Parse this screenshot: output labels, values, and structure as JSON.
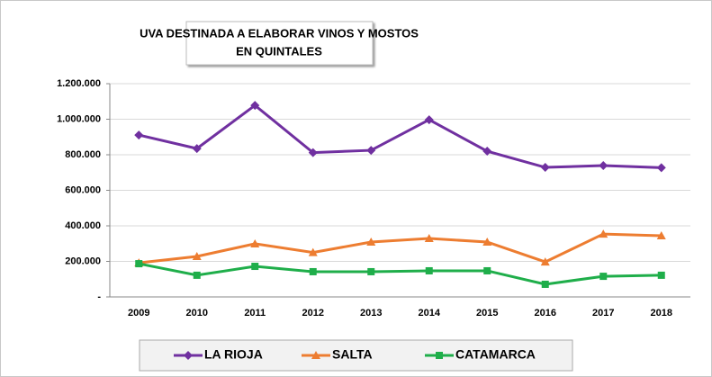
{
  "chart_data": {
    "type": "line",
    "title": [
      "UVA DESTINADA A ELABORAR VINOS Y MOSTOS",
      "EN QUINTALES"
    ],
    "categories": [
      "2009",
      "2010",
      "2011",
      "2012",
      "2013",
      "2014",
      "2015",
      "2016",
      "2017",
      "2018"
    ],
    "series": [
      {
        "name": "LA RIOJA",
        "color": "#7030a0",
        "marker": "diamond",
        "values": [
          911000,
          835000,
          1078000,
          812000,
          825000,
          997000,
          820000,
          729000,
          739000,
          727000
        ]
      },
      {
        "name": "SALTA",
        "color": "#ed7d31",
        "marker": "triangle",
        "values": [
          192000,
          228000,
          299000,
          250000,
          309000,
          329000,
          309000,
          197000,
          354000,
          344000
        ]
      },
      {
        "name": "CATAMARCA",
        "color": "#1fae4a",
        "marker": "square",
        "values": [
          187000,
          122000,
          172000,
          142000,
          142000,
          147000,
          147000,
          71000,
          116000,
          122000
        ]
      }
    ],
    "ylim": [
      0,
      1200000
    ],
    "yticks": [
      {
        "value": 0,
        "label": "-"
      },
      {
        "value": 200000,
        "label": "200.000"
      },
      {
        "value": 400000,
        "label": "400.000"
      },
      {
        "value": 600000,
        "label": "600.000"
      },
      {
        "value": 800000,
        "label": "800.000"
      },
      {
        "value": 1000000,
        "label": "1.000.000"
      },
      {
        "value": 1200000,
        "label": "1.200.000"
      }
    ],
    "grid": true
  }
}
